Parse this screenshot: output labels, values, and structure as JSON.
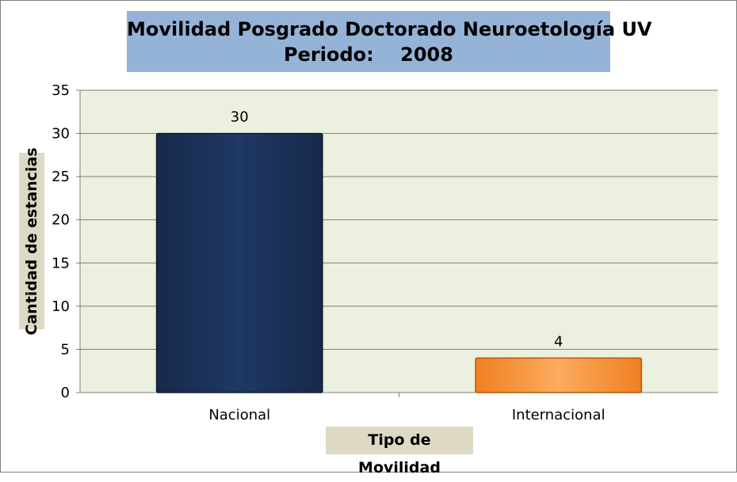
{
  "chart_data": {
    "type": "bar",
    "title": "Movilidad Posgrado Doctorado Neuroetología UV",
    "subtitle": "Periodo:    2008",
    "xlabel": "Tipo de Movilidad",
    "ylabel": "Cantidad de estancias",
    "categories": [
      "Nacional",
      "Internacional"
    ],
    "values": [
      30,
      4
    ],
    "data_labels": [
      "30",
      "4"
    ],
    "ylim": [
      0,
      35
    ],
    "yticks": [
      0,
      5,
      10,
      15,
      20,
      25,
      30,
      35
    ],
    "grid": true,
    "legend": "none",
    "colors": {
      "bars": [
        "#1f3864",
        "#f79646"
      ],
      "bar_edges": [
        "#0f1f3a",
        "#b65708"
      ],
      "plot_background": "#ebf1de",
      "title_background": "#95b3d7",
      "axis_label_background": "#ddd9c4",
      "gridline": "#7f7f7f"
    }
  }
}
